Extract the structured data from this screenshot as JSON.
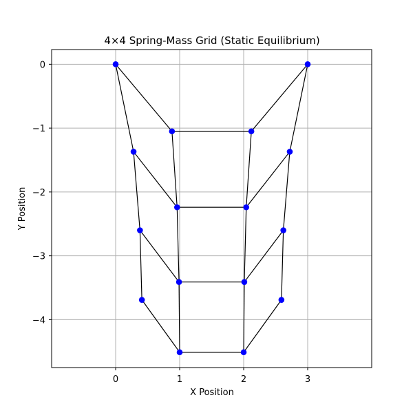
{
  "chart_data": {
    "type": "scatter",
    "title": "4×4 Spring-Mass Grid (Static Equilibrium)",
    "xlabel": "X Position",
    "ylabel": "Y Position",
    "xlim": [
      -1.0,
      4.0
    ],
    "ylim": [
      -4.75,
      0.23
    ],
    "xticks": [
      0,
      1,
      2,
      3
    ],
    "yticks": [
      0,
      -1,
      -2,
      -3,
      -4
    ],
    "xtick_labels": [
      "0",
      "1",
      "2",
      "3"
    ],
    "ytick_labels": [
      "0",
      "−1",
      "−2",
      "−3",
      "−4"
    ],
    "grid": true,
    "marker_color": "#0000ff",
    "line_color": "#000000",
    "nodes": [
      {
        "x": 0.0,
        "y": 0.0
      },
      {
        "x": 0.88,
        "y": -1.05
      },
      {
        "x": 2.12,
        "y": -1.05
      },
      {
        "x": 3.0,
        "y": 0.0
      },
      {
        "x": 0.28,
        "y": -1.37
      },
      {
        "x": 0.96,
        "y": -2.24
      },
      {
        "x": 2.04,
        "y": -2.24
      },
      {
        "x": 2.72,
        "y": -1.37
      },
      {
        "x": 0.38,
        "y": -2.6
      },
      {
        "x": 0.99,
        "y": -3.41
      },
      {
        "x": 2.01,
        "y": -3.41
      },
      {
        "x": 2.62,
        "y": -2.6
      },
      {
        "x": 0.41,
        "y": -3.69
      },
      {
        "x": 1.0,
        "y": -4.51
      },
      {
        "x": 2.0,
        "y": -4.51
      },
      {
        "x": 2.59,
        "y": -3.69
      }
    ],
    "springs": [
      [
        0,
        1
      ],
      [
        1,
        2
      ],
      [
        2,
        3
      ],
      [
        4,
        5
      ],
      [
        5,
        6
      ],
      [
        6,
        7
      ],
      [
        8,
        9
      ],
      [
        9,
        10
      ],
      [
        10,
        11
      ],
      [
        12,
        13
      ],
      [
        13,
        14
      ],
      [
        14,
        15
      ],
      [
        0,
        4
      ],
      [
        4,
        8
      ],
      [
        8,
        12
      ],
      [
        1,
        5
      ],
      [
        5,
        9
      ],
      [
        9,
        13
      ],
      [
        2,
        6
      ],
      [
        6,
        10
      ],
      [
        10,
        14
      ],
      [
        3,
        7
      ],
      [
        7,
        11
      ],
      [
        11,
        15
      ]
    ]
  }
}
